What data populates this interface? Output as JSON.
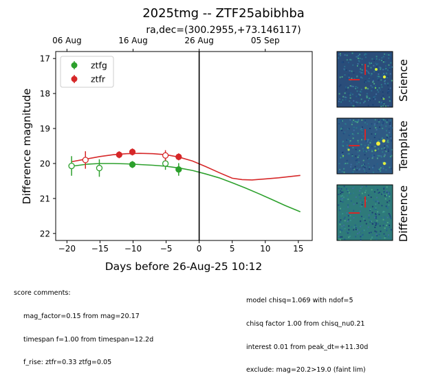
{
  "title": "2025tmg -- ZTF25abibhba",
  "subtitle": "ra,dec=(300.2955,+73.146117)",
  "top_axis": {
    "ticks": [
      {
        "label": "06 Aug",
        "x": -20
      },
      {
        "label": "16 Aug",
        "x": -10
      },
      {
        "label": "26 Aug",
        "x": 0
      },
      {
        "label": "05 Sep",
        "x": 10
      }
    ]
  },
  "stamps": {
    "labels": [
      "Science",
      "Template",
      "Difference"
    ]
  },
  "comments_left": {
    "header": "score comments:",
    "lines": [
      "mag_factor=0.15 from mag=20.17",
      "timespan f=1.00 from timespan=12.2d",
      "f_rise: ztfr=0.33 ztfg=0.05"
    ]
  },
  "comments_right": {
    "lines": [
      "model chisq=1.069 with ndof=5",
      "chisq factor 1.00 from chisq_nu0.21",
      "interest 0.01 from peak_dt=+11.30d",
      "exclude: mag=20.2>19.0 (faint lim)"
    ]
  },
  "colors": {
    "ztfg": "#2ca02c",
    "ztfr": "#d62728",
    "axis": "#000000"
  },
  "chart_data": {
    "type": "scatter",
    "xlabel": "Days before 26-Aug-25 10:12",
    "ylabel": "Difference magnitude",
    "xlim": [
      -21.7,
      17.1
    ],
    "ylim": [
      22.2,
      16.8
    ],
    "y_inverted": true,
    "xticks": [
      -20,
      -15,
      -10,
      -5,
      0,
      5,
      10,
      15
    ],
    "yticks": [
      17,
      18,
      19,
      20,
      21,
      22
    ],
    "legend_position": "top-left",
    "vline_x": 0,
    "series": [
      {
        "name": "ztfg",
        "points": [
          {
            "x": -19.3,
            "y": 20.07,
            "err": 0.28,
            "filled": false
          },
          {
            "x": -15.1,
            "y": 20.13,
            "err": 0.25,
            "filled": false
          },
          {
            "x": -10.1,
            "y": 20.03,
            "err": 0.1,
            "filled": true
          },
          {
            "x": -5.1,
            "y": 20.0,
            "err": 0.18,
            "filled": false
          },
          {
            "x": -3.1,
            "y": 20.17,
            "err": 0.18,
            "filled": true
          }
        ],
        "model": {
          "x": [
            -19.3,
            -17,
            -15,
            -13,
            -11,
            -9,
            -7,
            -5,
            -3,
            -1,
            1,
            3,
            5,
            7,
            9,
            11,
            13,
            15.3
          ],
          "y": [
            20.08,
            20.02,
            20.0,
            20.0,
            20.01,
            20.03,
            20.05,
            20.08,
            20.13,
            20.2,
            20.3,
            20.41,
            20.55,
            20.7,
            20.86,
            21.03,
            21.2,
            21.38
          ]
        }
      },
      {
        "name": "ztfr",
        "points": [
          {
            "x": -17.2,
            "y": 19.9,
            "err": 0.25,
            "filled": false
          },
          {
            "x": -12.1,
            "y": 19.75,
            "err": 0.1,
            "filled": true
          },
          {
            "x": -10.1,
            "y": 19.67,
            "err": 0.1,
            "filled": true
          },
          {
            "x": -5.1,
            "y": 19.77,
            "err": 0.15,
            "filled": false
          },
          {
            "x": -3.1,
            "y": 19.81,
            "err": 0.1,
            "filled": true
          }
        ],
        "model": {
          "x": [
            -19.3,
            -17,
            -15,
            -13,
            -11,
            -9,
            -7,
            -5,
            -3,
            -1,
            1,
            3,
            5,
            6.5,
            8,
            10,
            12,
            15.3
          ],
          "y": [
            19.95,
            19.87,
            19.8,
            19.75,
            19.72,
            19.71,
            19.72,
            19.75,
            19.82,
            19.93,
            20.09,
            20.26,
            20.42,
            20.46,
            20.47,
            20.44,
            20.41,
            20.34
          ]
        }
      }
    ]
  }
}
